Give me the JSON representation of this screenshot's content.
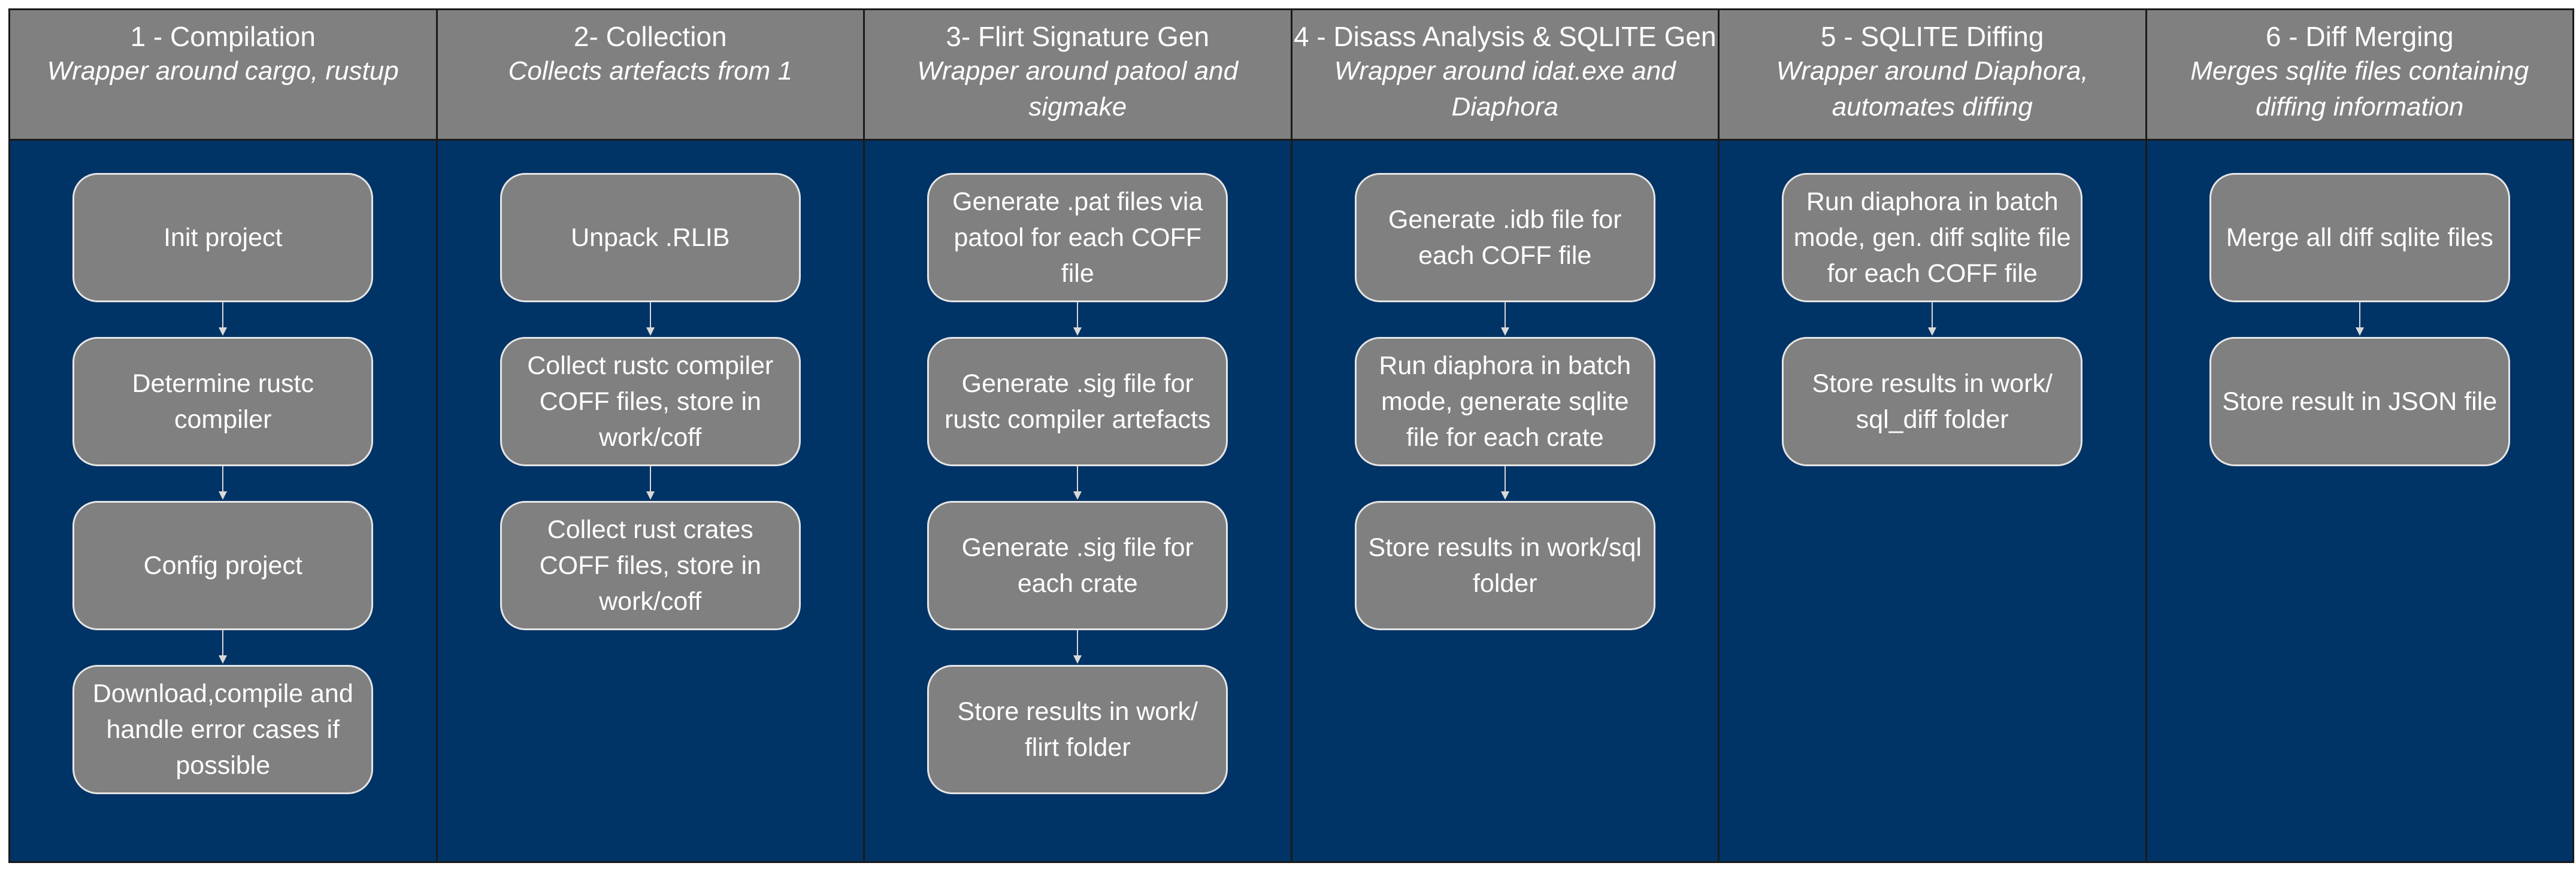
{
  "columns": [
    {
      "title": "1 - Compilation",
      "subtitle": "Wrapper around cargo, rustup",
      "steps": [
        "Init project",
        "Determine rustc compiler",
        "Config project",
        "Download,compile and handle error cases if possible"
      ]
    },
    {
      "title": "2- Collection",
      "subtitle": "Collects artefacts from 1",
      "steps": [
        "Unpack .RLIB",
        "Collect rustc compiler COFF files, store in work/coff",
        "Collect rust crates COFF files, store in work/coff"
      ]
    },
    {
      "title": "3- Flirt Signature Gen",
      "subtitle": "Wrapper around patool and sigmake",
      "steps": [
        "Generate .pat files via patool for each COFF file",
        "Generate .sig file for rustc compiler artefacts",
        "Generate .sig file for each crate",
        "Store results in work/ flirt folder"
      ]
    },
    {
      "title": "4 - Disass Analysis & SQLITE Gen",
      "subtitle": "Wrapper around idat.exe and Diaphora",
      "steps": [
        "Generate .idb file for each COFF file",
        "Run diaphora in batch mode, generate sqlite file for each crate",
        "Store results in work/sql folder"
      ]
    },
    {
      "title": "5 - SQLITE Diffing",
      "subtitle": "Wrapper around Diaphora, automates diffing",
      "steps": [
        "Run diaphora in batch mode, gen. diff sqlite file for each COFF file",
        "Store results in work/ sql_diff folder"
      ]
    },
    {
      "title": "6 - Diff Merging",
      "subtitle": "Merges sqlite files containing diffing information",
      "steps": [
        "Merge all diff sqlite files",
        "Store result in JSON file"
      ]
    }
  ],
  "colors": {
    "header_bg": "#808080",
    "body_bg": "#003366",
    "step_bg": "#808080",
    "step_border": "#e6e6e6",
    "text": "#ffffff"
  }
}
